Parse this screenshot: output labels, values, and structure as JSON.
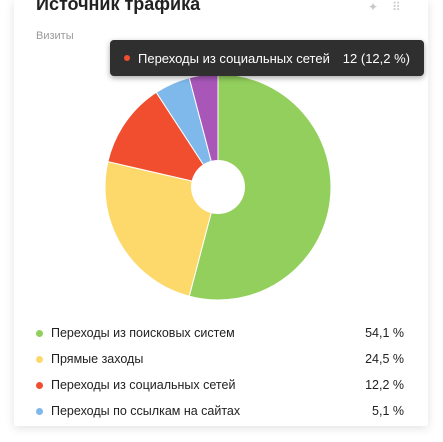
{
  "widget": {
    "title": "Источник трафика",
    "subtitle": "Визиты"
  },
  "tooltip": {
    "label": "Переходы из социальных сетей",
    "value": "12 (12,2 %)",
    "color": "#f04e2f"
  },
  "chart_data": {
    "type": "pie",
    "donut": true,
    "series": [
      {
        "name": "Переходы из поисковых систем",
        "value": 54.1,
        "color": "#92cf5c"
      },
      {
        "name": "Прямые заходы",
        "value": 24.5,
        "color": "#fcd96a"
      },
      {
        "name": "Переходы из социальных сетей",
        "value": 12.2,
        "color": "#f04e2f"
      },
      {
        "name": "Переходы по ссылкам на сайтах",
        "value": 5.1,
        "color": "#7fb8ea"
      },
      {
        "name": "",
        "value": 4.1,
        "color": "#a857b9"
      }
    ]
  },
  "legend": [
    {
      "label": "Переходы из поисковых систем",
      "pct": "54,1 %",
      "color": "#92cf5c"
    },
    {
      "label": "Прямые заходы",
      "pct": "24,5 %",
      "color": "#fcd96a"
    },
    {
      "label": "Переходы из социальных сетей",
      "pct": "12,2 %",
      "color": "#f04e2f"
    },
    {
      "label": "Переходы по ссылкам на сайтах",
      "pct": "5,1 %",
      "color": "#7fb8ea"
    }
  ],
  "icons": [
    "pin-icon",
    "drag-handle-icon"
  ]
}
